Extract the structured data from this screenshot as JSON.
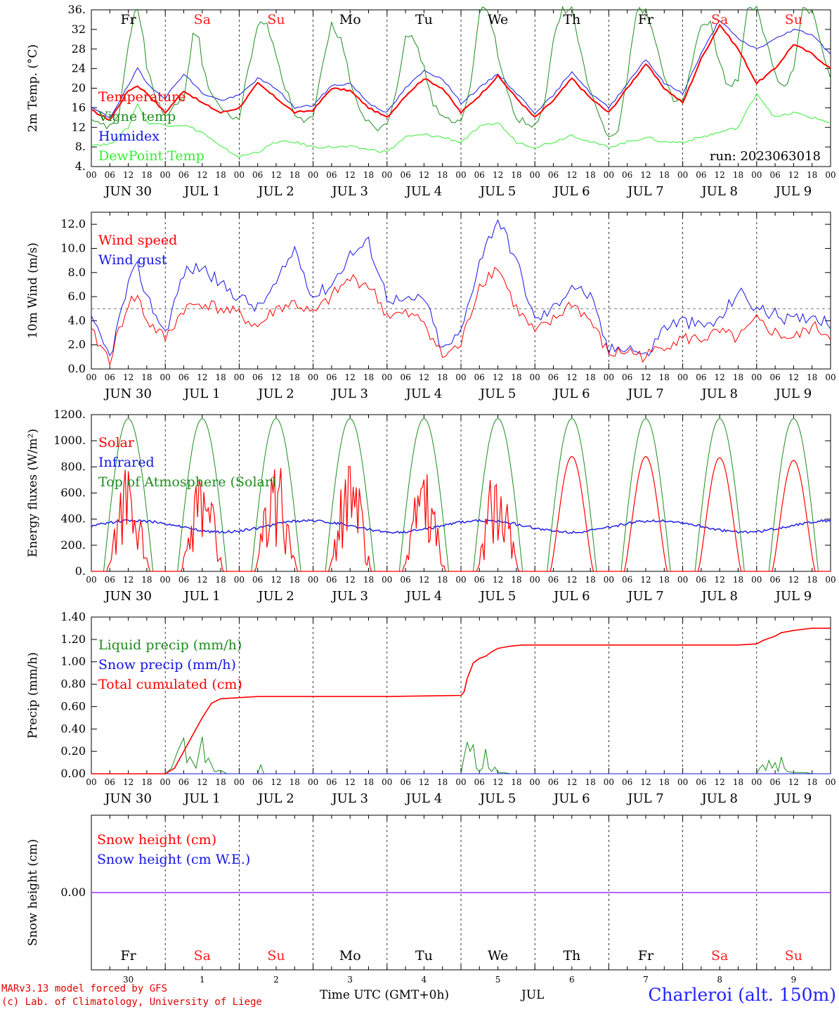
{
  "header": {
    "model_line": "MARv3.13 model forced by GFS",
    "lab_line": "(c) Lab. of Climatology, University of Liege",
    "station": "Charleroi (alt. 150m)",
    "run_label": "run: 2023063018",
    "time_axis_title": "Time UTC (GMT+0h)",
    "month_label": "JUL"
  },
  "days": {
    "weekday_labels": [
      "Fr",
      "Sa",
      "Su",
      "Mo",
      "Tu",
      "We",
      "Th",
      "Fr",
      "Sa",
      "Su"
    ],
    "weekend_flags": [
      false,
      true,
      true,
      false,
      false,
      false,
      false,
      false,
      true,
      true
    ],
    "date_labels": [
      "JUN 30",
      "JUL  1",
      "JUL  2",
      "JUL  3",
      "JUL  4",
      "JUL  5",
      "JUL  6",
      "JUL  7",
      "JUL  8",
      "JUL  9"
    ],
    "day_numbers": [
      "30",
      "1",
      "2",
      "3",
      "4",
      "5",
      "6",
      "7",
      "8",
      "9"
    ],
    "hour_ticks": [
      "00",
      "06",
      "12",
      "18"
    ],
    "final_tick": "00"
  },
  "colors": {
    "red": "#ff0000",
    "green": "#1e8c1e",
    "lightgreen": "#33ee33",
    "blue": "#1414e6",
    "purple": "#9b30ff",
    "weekend": "#ff2020"
  },
  "chart_data": [
    {
      "type": "line",
      "ylabel": "2m Temp. (°C)",
      "ylim": [
        4,
        36
      ],
      "yticks": [
        "4.",
        "8.",
        "12",
        "16",
        "20",
        "24",
        "28",
        "32",
        "36."
      ],
      "x_unit": "hours since 2023-06-30 00 UTC",
      "xlim": [
        0,
        240
      ],
      "series": [
        {
          "name": "Temperature",
          "color": "red",
          "x": [
            0,
            6,
            12,
            15,
            18,
            24,
            30,
            36,
            42,
            48,
            54,
            60,
            66,
            72,
            78,
            84,
            90,
            96,
            102,
            108,
            114,
            120,
            126,
            132,
            138,
            144,
            150,
            156,
            162,
            168,
            174,
            180,
            186,
            192,
            198,
            204,
            210,
            216,
            222,
            228,
            234,
            240
          ],
          "y": [
            15.5,
            13.5,
            19.5,
            20.5,
            19,
            15,
            19.5,
            17,
            15,
            16,
            21,
            18,
            15,
            15.5,
            20,
            19.5,
            16,
            14,
            18.5,
            22,
            20,
            15,
            18.5,
            22.5,
            18,
            14,
            17.5,
            22,
            18,
            15,
            20,
            25,
            20,
            17,
            26,
            33,
            28,
            21,
            24,
            29,
            27,
            24
          ]
        },
        {
          "name": "Vigne temp",
          "color": "green",
          "x": [
            0,
            6,
            9,
            12,
            14,
            15,
            17,
            18,
            21,
            24,
            30,
            33,
            35,
            36,
            39,
            42,
            45,
            48,
            51,
            54,
            57,
            60,
            63,
            66,
            69,
            72,
            75,
            78,
            81,
            84,
            87,
            90,
            93,
            96,
            99,
            102,
            105,
            108,
            111,
            114,
            117,
            120,
            123,
            126,
            129,
            132,
            135,
            138,
            141,
            144,
            147,
            150,
            153,
            156,
            159,
            162,
            165,
            168,
            171,
            174,
            177,
            180,
            183,
            186,
            189,
            192,
            195,
            198,
            201,
            204,
            207,
            210,
            213,
            216,
            219,
            222,
            225,
            228,
            231,
            234,
            237,
            240
          ],
          "y": [
            13,
            12,
            15,
            28,
            36,
            36,
            30,
            24,
            18,
            14,
            18,
            31,
            31,
            24,
            19,
            16,
            14,
            14,
            24,
            33,
            33,
            27,
            20,
            15,
            13,
            14,
            24,
            33,
            30,
            22,
            16,
            13,
            12,
            13,
            20,
            30,
            30,
            24,
            17,
            14,
            13,
            13,
            20,
            36,
            36,
            27,
            19,
            14,
            13,
            12,
            16,
            30,
            36,
            36,
            27,
            19,
            14,
            10,
            12,
            22,
            36,
            36,
            30,
            22,
            18,
            17,
            25,
            33,
            33,
            25,
            20,
            22,
            36,
            36,
            30,
            23,
            20,
            24,
            36,
            36,
            28,
            22
          ]
        },
        {
          "name": "Humidex",
          "color": "blue",
          "x": [
            0,
            6,
            12,
            15,
            18,
            24,
            30,
            36,
            42,
            48,
            54,
            60,
            66,
            72,
            78,
            84,
            90,
            96,
            102,
            108,
            114,
            120,
            126,
            132,
            138,
            144,
            150,
            156,
            162,
            168,
            174,
            180,
            186,
            192,
            198,
            204,
            210,
            216,
            222,
            228,
            234,
            240
          ],
          "y": [
            16,
            14,
            20.5,
            24,
            21,
            18,
            23,
            19,
            17.5,
            18.5,
            22,
            20,
            16,
            16.5,
            20.5,
            21,
            17,
            15,
            20,
            23.5,
            22,
            17,
            20,
            23,
            19,
            15,
            18.5,
            23.5,
            19,
            16,
            21,
            26,
            21,
            19,
            27,
            34,
            30,
            28,
            30,
            32,
            31,
            27
          ]
        },
        {
          "name": "DewPoint Temp",
          "color": "lightgreen",
          "x": [
            0,
            6,
            12,
            15,
            18,
            24,
            30,
            36,
            42,
            48,
            54,
            60,
            66,
            72,
            78,
            84,
            90,
            96,
            102,
            108,
            114,
            120,
            126,
            132,
            138,
            144,
            150,
            156,
            162,
            168,
            174,
            180,
            186,
            192,
            198,
            204,
            210,
            216,
            222,
            228,
            234,
            240
          ],
          "y": [
            8.5,
            8.5,
            12,
            17,
            13,
            12.5,
            12.5,
            11,
            8,
            6,
            7,
            9,
            9,
            8,
            8,
            8,
            7.5,
            7,
            10,
            10.5,
            10,
            9,
            12,
            13,
            9,
            8,
            9,
            10.5,
            9,
            8,
            9,
            10,
            9,
            9,
            10,
            11,
            12,
            19,
            14,
            15,
            14,
            13
          ]
        }
      ],
      "annotation": "run: 2023063018"
    },
    {
      "type": "line",
      "ylabel": "10m Wind (m/s)",
      "ylim": [
        0,
        13
      ],
      "yticks": [
        "0.0",
        "2.0",
        "4.0",
        "6.0",
        "8.0",
        "10.0",
        "12.0"
      ],
      "reference_line": 5,
      "x_unit": "hours since 2023-06-30 00 UTC",
      "xlim": [
        0,
        240
      ],
      "series": [
        {
          "name": "Wind speed",
          "color": "red",
          "x": [
            0,
            6,
            12,
            15,
            18,
            24,
            30,
            36,
            42,
            48,
            54,
            60,
            66,
            72,
            78,
            84,
            90,
            96,
            102,
            108,
            114,
            120,
            126,
            132,
            138,
            144,
            150,
            156,
            162,
            168,
            174,
            180,
            186,
            192,
            198,
            204,
            210,
            216,
            222,
            228,
            234,
            240
          ],
          "y": [
            3,
            0.8,
            5.5,
            6,
            4,
            2.5,
            5,
            5.5,
            5,
            4.5,
            3.5,
            5,
            5.5,
            4.5,
            6,
            7.5,
            7,
            4.5,
            4.5,
            4,
            1,
            2,
            7,
            8.5,
            5,
            3,
            4,
            5.5,
            4,
            1.2,
            1.5,
            1,
            2,
            2.5,
            2.5,
            3,
            2.5,
            4,
            3,
            2.5,
            3.5,
            2.8
          ]
        },
        {
          "name": "Wind gust",
          "color": "blue",
          "x": [
            0,
            6,
            12,
            15,
            18,
            24,
            30,
            36,
            42,
            48,
            54,
            60,
            66,
            72,
            78,
            84,
            90,
            96,
            102,
            108,
            114,
            120,
            126,
            132,
            138,
            144,
            150,
            156,
            162,
            168,
            174,
            180,
            186,
            192,
            198,
            204,
            210,
            216,
            222,
            228,
            234,
            240
          ],
          "y": [
            4,
            1,
            7,
            8.5,
            6,
            3,
            8,
            8.5,
            7,
            6,
            5,
            7,
            10,
            6,
            7,
            9.5,
            10.5,
            6,
            5.5,
            6,
            1.5,
            3,
            9,
            12.5,
            9,
            4,
            5,
            7,
            6,
            1.5,
            2,
            1,
            3.5,
            4,
            3.5,
            4,
            6.5,
            5,
            4.5,
            4,
            4.5,
            3.8
          ]
        }
      ]
    },
    {
      "type": "line",
      "ylabel": "Energy fluxes (W/m²)",
      "ylim": [
        0,
        1200
      ],
      "yticks": [
        "0.",
        "200.",
        "400.",
        "600.",
        "800.",
        "1000.",
        "1200."
      ],
      "x_unit": "hours since 2023-06-30 00 UTC",
      "xlim": [
        0,
        240
      ],
      "daily_solar_peaks": [
        840,
        790,
        880,
        880,
        790,
        890,
        880,
        880,
        870,
        850
      ],
      "toa_peak": 1170,
      "infrared_range": [
        290,
        400
      ],
      "series": [
        {
          "name": "Solar",
          "color": "red"
        },
        {
          "name": "Infrared",
          "color": "blue"
        },
        {
          "name": "Top of Atmosphere (Solar)",
          "color": "green"
        }
      ]
    },
    {
      "type": "line",
      "ylabel": "Precip (mm/h)",
      "ylim": [
        0,
        1.4
      ],
      "yticks": [
        "0.00",
        "0.20",
        "0.40",
        "0.60",
        "0.80",
        "1.00",
        "1.20",
        "1.40"
      ],
      "x_unit": "hours since 2023-06-30 00 UTC",
      "xlim": [
        0,
        240
      ],
      "series": [
        {
          "name": "Liquid precip (mm/h)",
          "color": "green",
          "x": [
            0,
            24,
            26,
            28,
            30,
            31,
            32,
            34,
            36,
            37,
            38,
            40,
            42,
            44,
            48,
            54,
            55,
            56,
            60,
            120,
            121,
            122,
            123,
            124,
            125,
            126,
            127,
            128,
            129,
            130,
            131,
            132,
            134,
            136,
            144,
            216,
            217,
            218,
            219,
            220,
            221,
            222,
            223,
            224,
            225,
            226,
            228,
            230,
            232,
            234,
            240
          ],
          "y": [
            0,
            0,
            0.05,
            0.2,
            0.32,
            0.1,
            0.15,
            0.05,
            0.33,
            0.1,
            0.14,
            0.02,
            0.03,
            0,
            0,
            0,
            0.08,
            0,
            0,
            0,
            0.15,
            0.28,
            0.2,
            0.26,
            0.05,
            0.02,
            0.05,
            0.22,
            0.05,
            0.02,
            0.06,
            0.01,
            0.01,
            0,
            0,
            0,
            0.05,
            0.08,
            0.03,
            0.12,
            0.05,
            0.1,
            0.02,
            0.15,
            0.05,
            0.02,
            0.01,
            0.01,
            0.01,
            0,
            0
          ]
        },
        {
          "name": "Snow precip (mm/h)",
          "color": "blue",
          "x": [
            0,
            240
          ],
          "y": [
            0,
            0
          ]
        },
        {
          "name": "Total cumulated (cm)",
          "color": "red",
          "x": [
            0,
            24,
            27,
            30,
            33,
            36,
            39,
            42,
            48,
            54,
            60,
            72,
            96,
            120,
            121,
            122,
            124,
            126,
            128,
            130,
            132,
            134,
            136,
            140,
            144,
            168,
            192,
            210,
            216,
            218,
            220,
            222,
            224,
            226,
            228,
            234,
            240
          ],
          "y": [
            0,
            0,
            0.05,
            0.2,
            0.35,
            0.5,
            0.63,
            0.67,
            0.68,
            0.69,
            0.69,
            0.69,
            0.69,
            0.7,
            0.73,
            0.85,
            0.99,
            1.03,
            1.05,
            1.09,
            1.12,
            1.13,
            1.14,
            1.15,
            1.15,
            1.15,
            1.15,
            1.15,
            1.16,
            1.19,
            1.21,
            1.23,
            1.26,
            1.27,
            1.28,
            1.3,
            1.3
          ]
        }
      ]
    },
    {
      "type": "line",
      "ylabel": "Snow height (cm)",
      "ylim": [
        -1,
        1
      ],
      "yticks": [
        "0.00"
      ],
      "x_unit": "hours since 2023-06-30 00 UTC",
      "xlim": [
        0,
        240
      ],
      "series": [
        {
          "name": "Snow height (cm)",
          "color": "red",
          "x": [
            0,
            240
          ],
          "y": [
            0,
            0
          ]
        },
        {
          "name": "Snow height (cm W.E.)",
          "color": "blue",
          "x": [
            0,
            240
          ],
          "y": [
            0,
            0
          ]
        }
      ]
    }
  ]
}
